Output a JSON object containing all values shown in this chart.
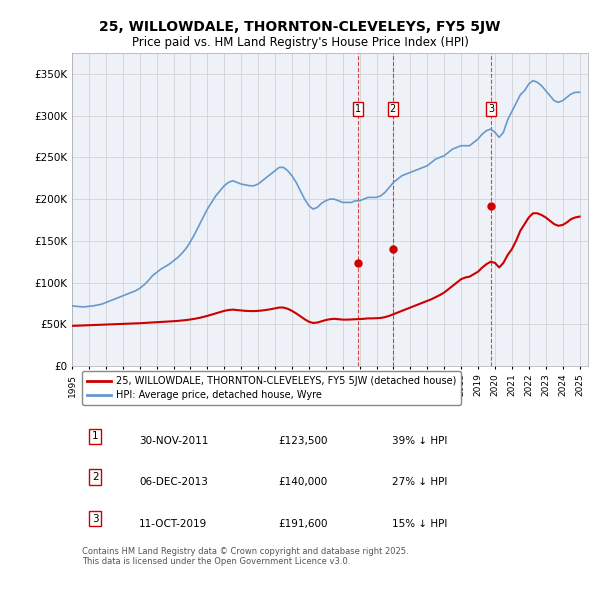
{
  "title": "25, WILLOWDALE, THORNTON-CLEVELEYS, FY5 5JW",
  "subtitle": "Price paid vs. HM Land Registry's House Price Index (HPI)",
  "ylabel_ticks": [
    "£0",
    "£50K",
    "£100K",
    "£150K",
    "£200K",
    "£250K",
    "£300K",
    "£350K"
  ],
  "ytick_values": [
    0,
    50000,
    100000,
    150000,
    200000,
    250000,
    300000,
    350000
  ],
  "ylim": [
    0,
    375000
  ],
  "sale_dates_num": [
    2011.92,
    2013.96,
    2019.79
  ],
  "sale_prices": [
    123500,
    140000,
    191600
  ],
  "sale_labels": [
    "1",
    "2",
    "3"
  ],
  "legend_line1": "25, WILLOWDALE, THORNTON-CLEVELEYS, FY5 5JW (detached house)",
  "legend_line2": "HPI: Average price, detached house, Wyre",
  "table_data": [
    [
      "1",
      "30-NOV-2011",
      "£123,500",
      "39% ↓ HPI"
    ],
    [
      "2",
      "06-DEC-2013",
      "£140,000",
      "27% ↓ HPI"
    ],
    [
      "3",
      "11-OCT-2019",
      "£191,600",
      "15% ↓ HPI"
    ]
  ],
  "footer": "Contains HM Land Registry data © Crown copyright and database right 2025.\nThis data is licensed under the Open Government Licence v3.0.",
  "line_color_red": "#cc0000",
  "line_color_blue": "#6699cc",
  "vline_color": "#cc0000",
  "grid_color": "#cccccc",
  "background_color": "#ffffff",
  "plot_bg_color": "#eef2f8",
  "hpi_data": {
    "years": [
      1995.0,
      1995.25,
      1995.5,
      1995.75,
      1996.0,
      1996.25,
      1996.5,
      1996.75,
      1997.0,
      1997.25,
      1997.5,
      1997.75,
      1998.0,
      1998.25,
      1998.5,
      1998.75,
      1999.0,
      1999.25,
      1999.5,
      1999.75,
      2000.0,
      2000.25,
      2000.5,
      2000.75,
      2001.0,
      2001.25,
      2001.5,
      2001.75,
      2002.0,
      2002.25,
      2002.5,
      2002.75,
      2003.0,
      2003.25,
      2003.5,
      2003.75,
      2004.0,
      2004.25,
      2004.5,
      2004.75,
      2005.0,
      2005.25,
      2005.5,
      2005.75,
      2006.0,
      2006.25,
      2006.5,
      2006.75,
      2007.0,
      2007.25,
      2007.5,
      2007.75,
      2008.0,
      2008.25,
      2008.5,
      2008.75,
      2009.0,
      2009.25,
      2009.5,
      2009.75,
      2010.0,
      2010.25,
      2010.5,
      2010.75,
      2011.0,
      2011.25,
      2011.5,
      2011.75,
      2012.0,
      2012.25,
      2012.5,
      2012.75,
      2013.0,
      2013.25,
      2013.5,
      2013.75,
      2014.0,
      2014.25,
      2014.5,
      2014.75,
      2015.0,
      2015.25,
      2015.5,
      2015.75,
      2016.0,
      2016.25,
      2016.5,
      2016.75,
      2017.0,
      2017.25,
      2017.5,
      2017.75,
      2018.0,
      2018.25,
      2018.5,
      2018.75,
      2019.0,
      2019.25,
      2019.5,
      2019.75,
      2020.0,
      2020.25,
      2020.5,
      2020.75,
      2021.0,
      2021.25,
      2021.5,
      2021.75,
      2022.0,
      2022.25,
      2022.5,
      2022.75,
      2023.0,
      2023.25,
      2023.5,
      2023.75,
      2024.0,
      2024.25,
      2024.5,
      2024.75,
      2025.0
    ],
    "hpi_values": [
      72000,
      71500,
      71000,
      70800,
      71500,
      72000,
      73000,
      74000,
      76000,
      78000,
      80000,
      82000,
      84000,
      86000,
      88000,
      90000,
      93000,
      97000,
      102000,
      108000,
      112000,
      116000,
      119000,
      122000,
      126000,
      130000,
      135000,
      141000,
      149000,
      158000,
      168000,
      178000,
      188000,
      196000,
      204000,
      210000,
      216000,
      220000,
      222000,
      220000,
      218000,
      217000,
      216000,
      216000,
      218000,
      222000,
      226000,
      230000,
      234000,
      238000,
      238000,
      234000,
      228000,
      220000,
      210000,
      200000,
      192000,
      188000,
      190000,
      195000,
      198000,
      200000,
      200000,
      198000,
      196000,
      196000,
      196000,
      198000,
      198000,
      200000,
      202000,
      202000,
      202000,
      204000,
      208000,
      214000,
      220000,
      224000,
      228000,
      230000,
      232000,
      234000,
      236000,
      238000,
      240000,
      244000,
      248000,
      250000,
      252000,
      256000,
      260000,
      262000,
      264000,
      264000,
      264000,
      268000,
      272000,
      278000,
      282000,
      284000,
      280000,
      274000,
      280000,
      295000,
      305000,
      315000,
      325000,
      330000,
      338000,
      342000,
      340000,
      336000,
      330000,
      324000,
      318000,
      316000,
      318000,
      322000,
      326000,
      328000,
      328000
    ],
    "price_paid_values": [
      48000,
      48200,
      48400,
      48600,
      48800,
      49000,
      49200,
      49400,
      49600,
      49800,
      50000,
      50200,
      50400,
      50600,
      50800,
      51000,
      51200,
      51500,
      51800,
      52100,
      52400,
      52700,
      53000,
      53300,
      53600,
      54000,
      54500,
      55000,
      55700,
      56500,
      57500,
      58700,
      60000,
      61500,
      63000,
      64500,
      66000,
      67000,
      67500,
      67000,
      66500,
      66000,
      65800,
      65700,
      66000,
      66500,
      67200,
      68000,
      69000,
      70000,
      70000,
      68500,
      66000,
      63000,
      59500,
      56000,
      53000,
      51500,
      52000,
      53500,
      55000,
      56000,
      56500,
      56000,
      55500,
      55500,
      55700,
      56000,
      56200,
      56500,
      57000,
      57000,
      57200,
      57500,
      58500,
      60000,
      62000,
      64000,
      66000,
      68000,
      70000,
      72000,
      74000,
      76000,
      78000,
      80000,
      82500,
      85000,
      88000,
      92000,
      96000,
      100000,
      104000,
      106000,
      107000,
      110000,
      113000,
      118000,
      122000,
      125000,
      123500,
      118000,
      123500,
      133000,
      140000,
      150000,
      162000,
      170000,
      178000,
      183000,
      183000,
      181000,
      178000,
      174000,
      170000,
      168000,
      169000,
      172000,
      176000,
      178000,
      179000
    ]
  }
}
